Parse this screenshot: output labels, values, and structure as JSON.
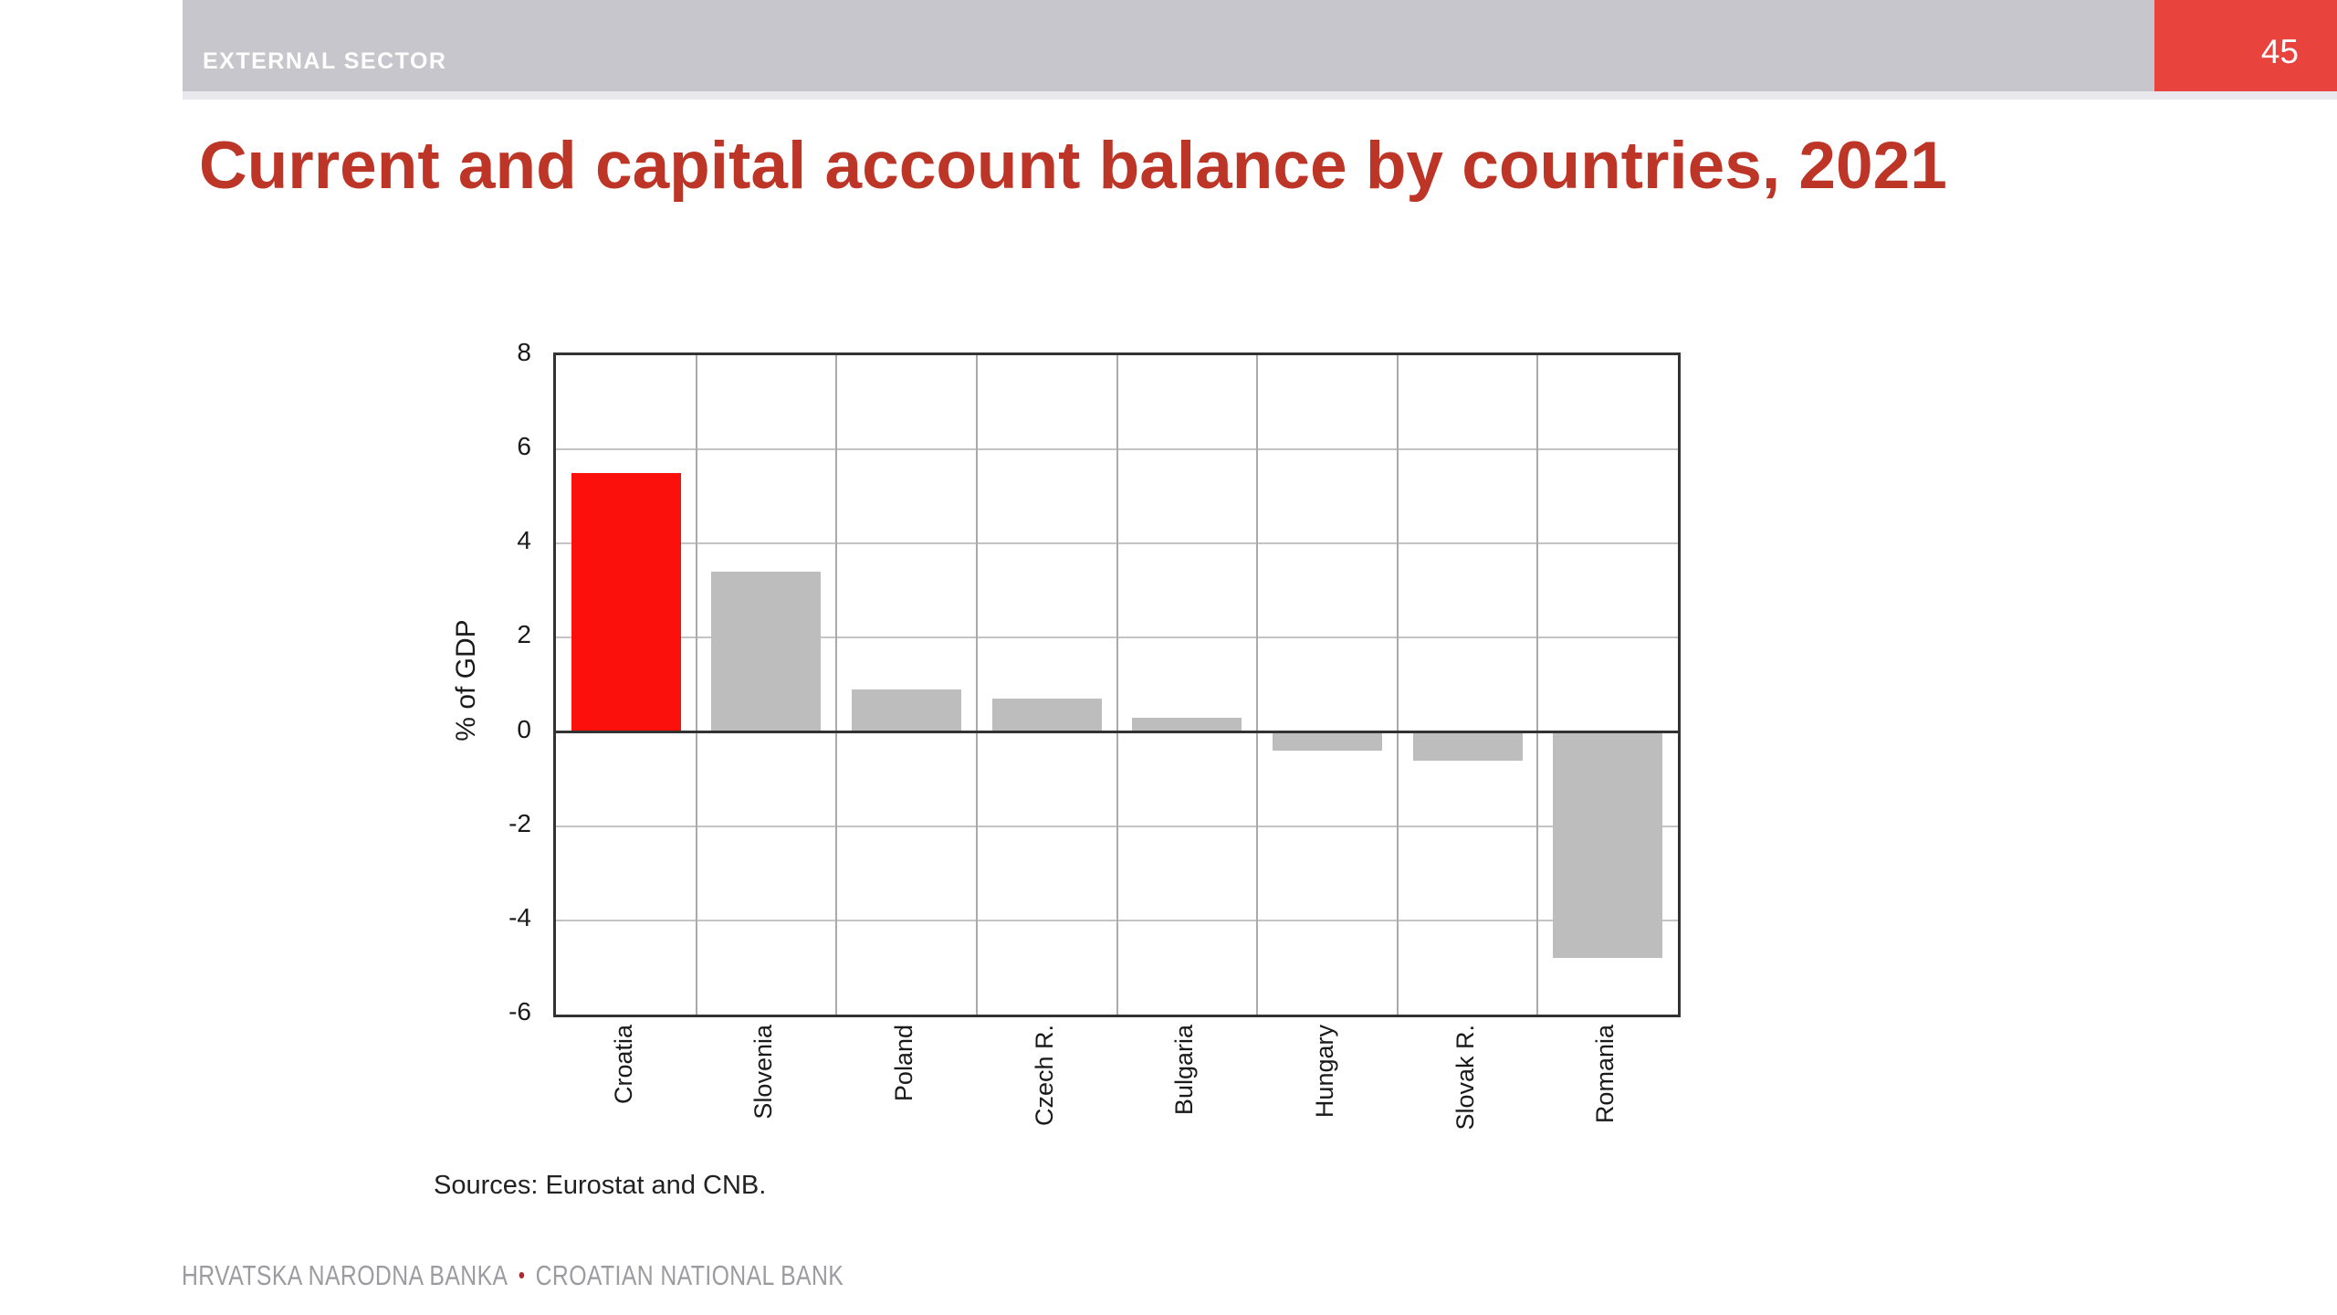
{
  "header": {
    "section_label": "EXTERNAL SECTOR",
    "page_number": "45"
  },
  "title": "Current and capital account balance by countries, 2021",
  "chart_data": {
    "type": "bar",
    "title": "",
    "ylabel": "% of GDP",
    "xlabel": "",
    "categories": [
      "Croatia",
      "Slovenia",
      "Poland",
      "Czech R.",
      "Bulgaria",
      "Hungary",
      "Slovak R.",
      "Romania"
    ],
    "values": [
      5.5,
      3.4,
      0.9,
      0.7,
      0.3,
      -0.4,
      -0.6,
      -4.8
    ],
    "ylim": [
      -6,
      8
    ],
    "yticks": [
      8,
      6,
      4,
      2,
      0,
      -2,
      -4,
      -6
    ],
    "grid": true,
    "legend": "none",
    "highlight_category": "Croatia",
    "bar_color": "#bdbdbd",
    "highlight_color": "#fb100c"
  },
  "source_note": "Sources: Eurostat and CNB.",
  "footer": {
    "bank_name_hr": "HRVATSKA NARODNA BANKA",
    "separator": "•",
    "bank_name_en": "CROATIAN NATIONAL BANK"
  },
  "colors": {
    "header_bar": "#c6c6cc",
    "header_accent_red": "#e8433d",
    "title_red": "#bd3526",
    "bar_gray": "#bdbdbd",
    "bar_red": "#fb100c",
    "footer_gray": "#9b9ba0",
    "footer_dot_red": "#b1272c"
  }
}
